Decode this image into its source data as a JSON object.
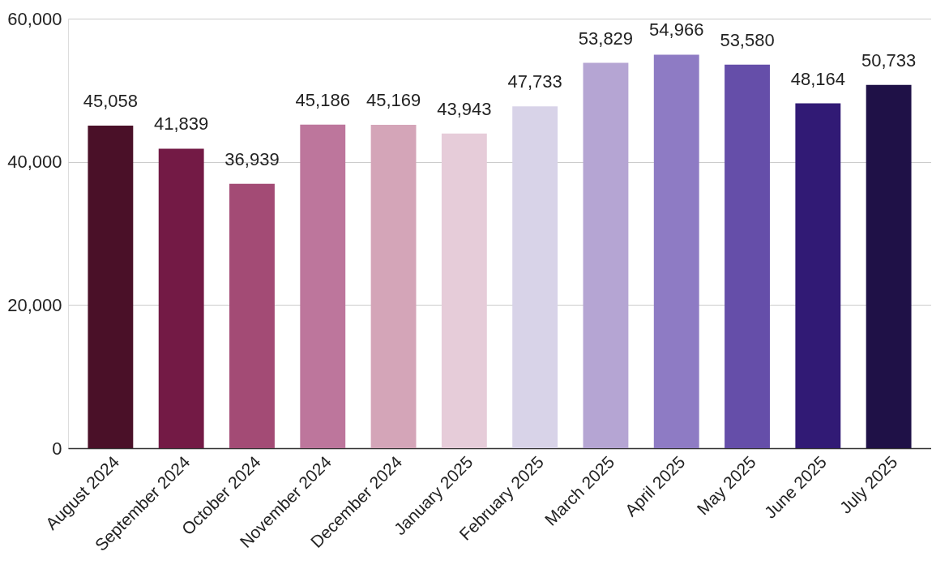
{
  "chart_data": {
    "type": "bar",
    "categories": [
      "August 2024",
      "September 2024",
      "October 2024",
      "November 2024",
      "December 2024",
      "January 2025",
      "February 2025",
      "March 2025",
      "April 2025",
      "May 2025",
      "June 2025",
      "July 2025"
    ],
    "values": [
      45058,
      41839,
      36939,
      45186,
      45169,
      43943,
      47733,
      53829,
      54966,
      53580,
      48164,
      50733
    ],
    "colors": [
      "#4a1028",
      "#731a45",
      "#a34b75",
      "#bd769c",
      "#d4a5b8",
      "#e6ccd9",
      "#d8d3e8",
      "#b5a5d3",
      "#8e7bc4",
      "#654ea9",
      "#311a75",
      "#1f1147"
    ],
    "ylim": [
      0,
      60000
    ],
    "yticks": [
      {
        "value": 0,
        "label": "0"
      },
      {
        "value": 20000,
        "label": "20,000"
      },
      {
        "value": 40000,
        "label": "40,000"
      },
      {
        "value": 60000,
        "label": "60,000"
      }
    ],
    "value_labels": [
      "45,058",
      "41,839",
      "36,939",
      "45,186",
      "45,169",
      "43,943",
      "47,733",
      "53,829",
      "54,966",
      "53,580",
      "48,164",
      "50,733"
    ],
    "grid": "y"
  }
}
